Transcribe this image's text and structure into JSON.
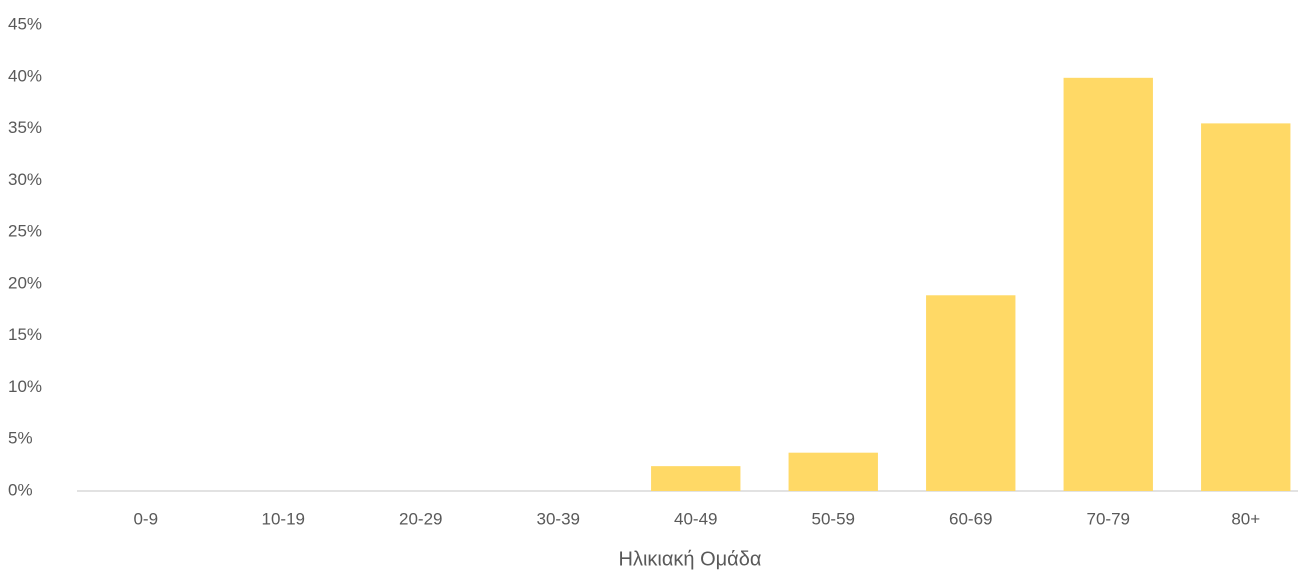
{
  "chart_data": {
    "type": "bar",
    "x_label": "Ηλικιακή Ομάδα",
    "categories": [
      "0-9",
      "10-19",
      "20-29",
      "30-39",
      "40-49",
      "50-59",
      "60-69",
      "70-79",
      "80+"
    ],
    "values": [
      0,
      0,
      0,
      0,
      2.4,
      3.7,
      18.9,
      39.9,
      35.5
    ],
    "color": "#ffd966",
    "ylim": [
      0,
      45
    ],
    "yticks": [
      {
        "value": 0,
        "label": "0%"
      },
      {
        "value": 5,
        "label": "5%"
      },
      {
        "value": 10,
        "label": "10%"
      },
      {
        "value": 15,
        "label": "15%"
      },
      {
        "value": 20,
        "label": "20%"
      },
      {
        "value": 25,
        "label": "25%"
      },
      {
        "value": 30,
        "label": "30%"
      },
      {
        "value": 35,
        "label": "35%"
      },
      {
        "value": 40,
        "label": "40%"
      },
      {
        "value": 45,
        "label": "45%"
      }
    ],
    "grid": false
  }
}
